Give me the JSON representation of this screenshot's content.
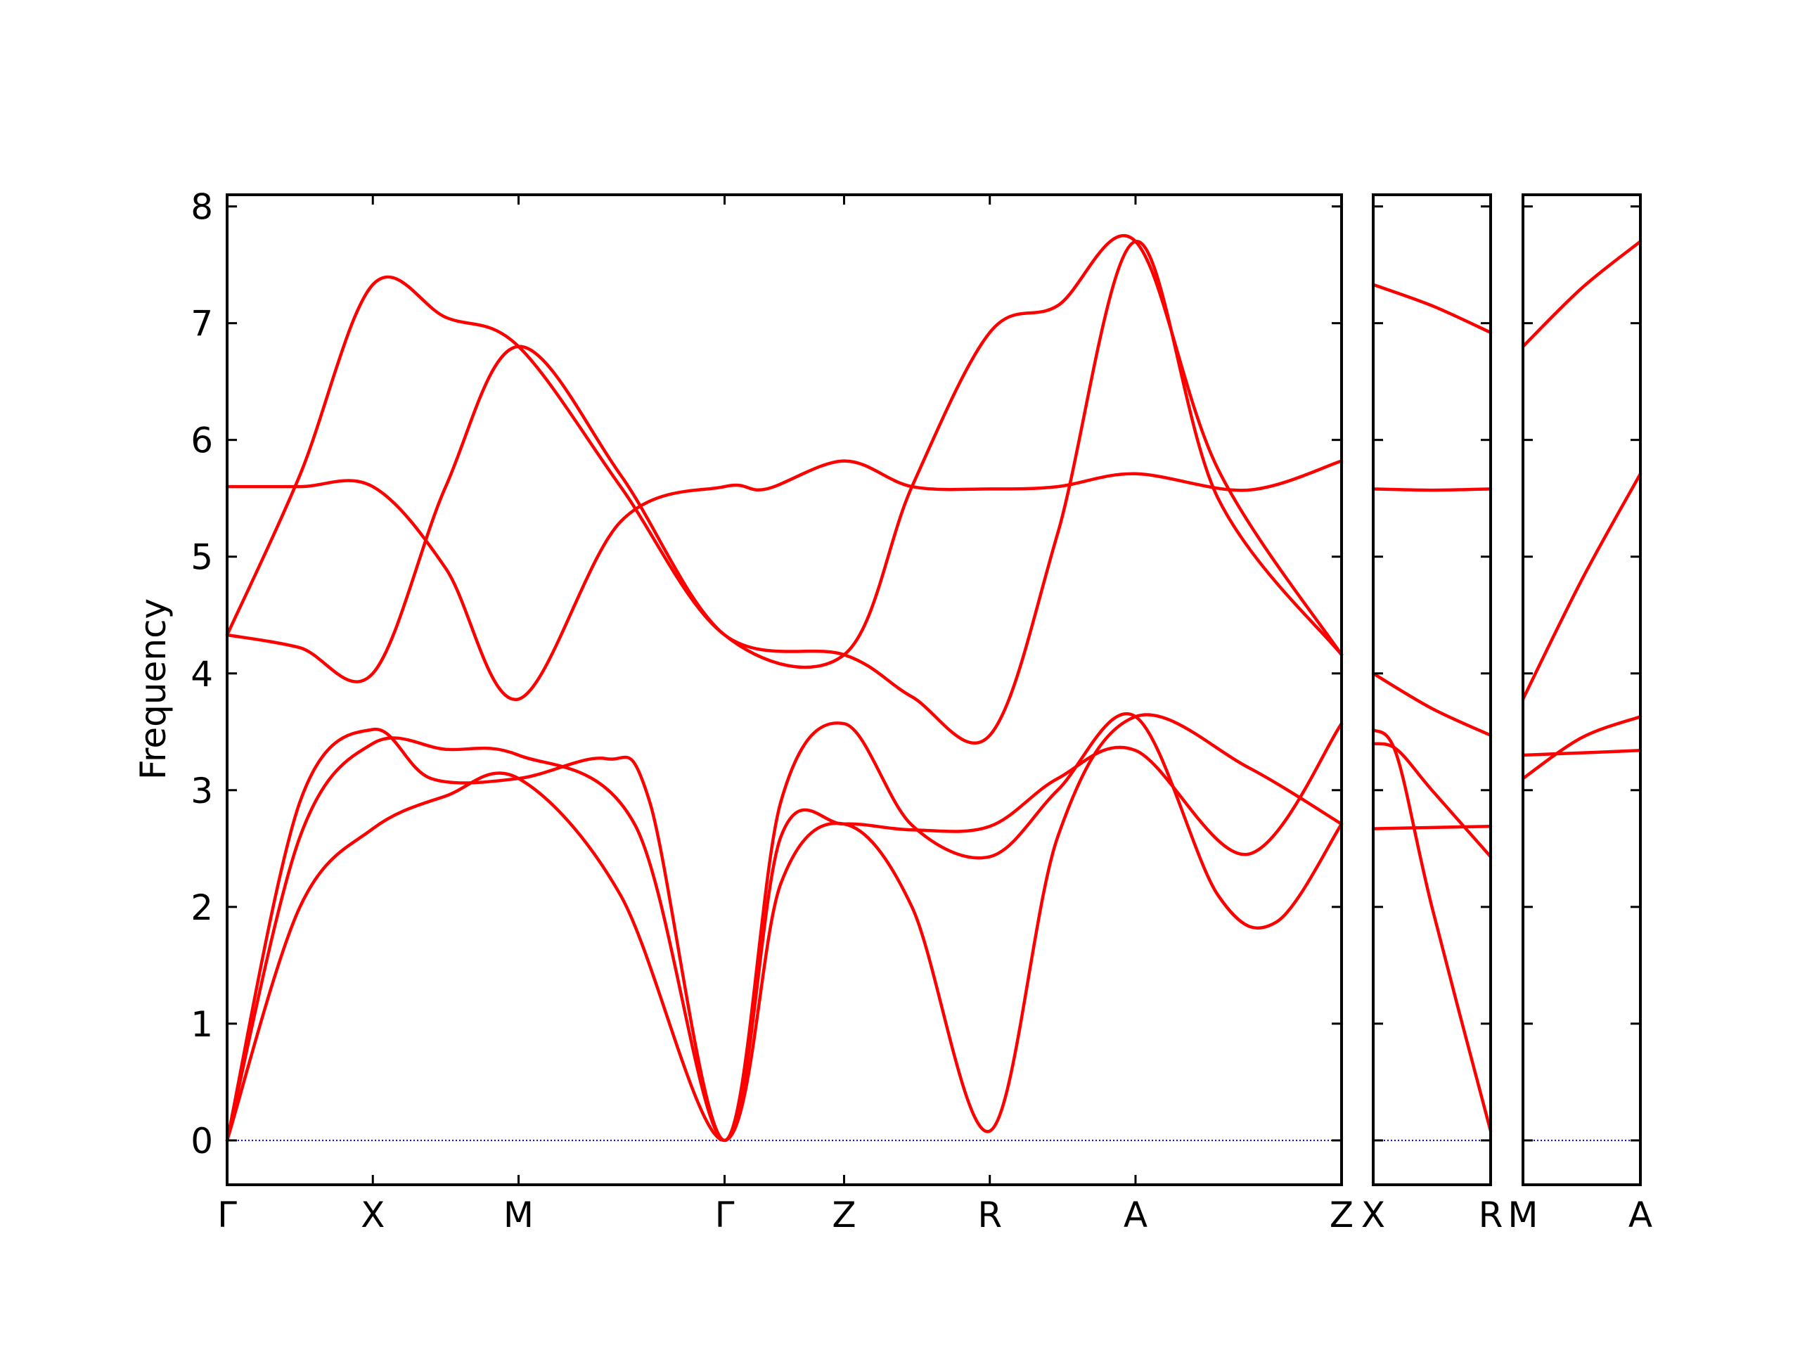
{
  "chart_data": {
    "type": "line",
    "title": "",
    "ylabel": "Frequency",
    "ylim": [
      -0.38,
      8.1
    ],
    "yticks": [
      "0",
      "1",
      "2",
      "3",
      "4",
      "5",
      "6",
      "7",
      "8"
    ],
    "grid": false,
    "legend": "none",
    "colors": {
      "bands": "#ff0000",
      "zero_line": "#0000ff",
      "axes": "#000000"
    },
    "panels": [
      {
        "ticks": [
          {
            "label": "Γ",
            "x": 0
          },
          {
            "label": "X",
            "x": 0.5
          },
          {
            "label": "M",
            "x": 1.0
          },
          {
            "label": "Γ",
            "x": 1.707
          },
          {
            "label": "Z",
            "x": 2.117
          },
          {
            "label": "R",
            "x": 2.617
          },
          {
            "label": "A",
            "x": 3.117
          },
          {
            "label": "Z",
            "x": 3.824
          }
        ],
        "series": [
          {
            "x": [
              0,
              0.25,
              0.5,
              0.75,
              1.0,
              1.35,
              1.707,
              1.9,
              2.117,
              2.35,
              2.617,
              2.85,
              3.117,
              3.5,
              3.824
            ],
            "y": [
              0.0,
              2.0,
              2.67,
              2.95,
              3.1,
              2.1,
              0.0,
              2.2,
              2.71,
              2.0,
              0.08,
              2.6,
              3.63,
              3.2,
              2.71
            ]
          },
          {
            "x": [
              0,
              0.25,
              0.5,
              0.75,
              1.0,
              1.4,
              1.707,
              1.9,
              2.117,
              2.35,
              2.617,
              2.85,
              3.117,
              3.5,
              3.824
            ],
            "y": [
              0.0,
              2.6,
              3.4,
              3.35,
              3.3,
              2.7,
              0.0,
              2.6,
              2.71,
              2.66,
              2.69,
              3.1,
              3.34,
              2.45,
              3.57
            ]
          },
          {
            "x": [
              0,
              0.25,
              0.5,
              0.7,
              1.0,
              1.3,
              1.45,
              1.707,
              1.9,
              2.117,
              2.35,
              2.617,
              2.85,
              3.117,
              3.4,
              3.6,
              3.824
            ],
            "y": [
              0.0,
              2.9,
              3.52,
              3.1,
              3.1,
              3.27,
              2.9,
              0.0,
              2.9,
              3.57,
              2.7,
              2.43,
              3.0,
              3.63,
              2.1,
              1.87,
              2.71
            ]
          },
          {
            "x": [
              0,
              0.25,
              0.5,
              0.75,
              1.0,
              1.35,
              1.707,
              2.117,
              2.35,
              2.617,
              2.85,
              3.117,
              3.4,
              3.824
            ],
            "y": [
              4.33,
              4.22,
              4.0,
              5.6,
              6.8,
              5.7,
              4.33,
              4.16,
              5.6,
              6.92,
              7.15,
              7.7,
              5.75,
              4.16
            ]
          },
          {
            "x": [
              0,
              0.25,
              0.5,
              0.75,
              1.0,
              1.35,
              1.707,
              2.117,
              2.35,
              2.617,
              2.85,
              3.117,
              3.4,
              3.824
            ],
            "y": [
              4.33,
              5.7,
              7.33,
              7.05,
              6.8,
              5.6,
              4.33,
              4.16,
              3.8,
              3.47,
              5.2,
              7.7,
              5.5,
              4.16
            ]
          },
          {
            "x": [
              0,
              0.25,
              0.5,
              0.75,
              1.0,
              1.35,
              1.707,
              1.85,
              2.117,
              2.35,
              2.617,
              2.85,
              3.117,
              3.5,
              3.824
            ],
            "y": [
              5.6,
              5.6,
              5.6,
              4.9,
              3.78,
              5.3,
              5.6,
              5.58,
              5.82,
              5.6,
              5.58,
              5.6,
              5.71,
              5.57,
              5.82
            ]
          }
        ],
        "zero_line": true
      },
      {
        "ticks": [
          {
            "label": "X",
            "x": 0
          },
          {
            "label": "R",
            "x": 0.5
          }
        ],
        "series": [
          {
            "x": [
              0,
              0.25,
              0.5
            ],
            "y": [
              7.33,
              7.15,
              6.92
            ]
          },
          {
            "x": [
              0,
              0.25,
              0.5
            ],
            "y": [
              5.58,
              5.57,
              5.58
            ]
          },
          {
            "x": [
              0,
              0.25,
              0.5
            ],
            "y": [
              4.0,
              3.7,
              3.47
            ]
          },
          {
            "x": [
              0,
              0.1,
              0.25,
              0.5
            ],
            "y": [
              3.52,
              3.3,
              2.0,
              0.08
            ]
          },
          {
            "x": [
              0,
              0.1,
              0.25,
              0.5
            ],
            "y": [
              3.4,
              3.35,
              3.0,
              2.43
            ]
          },
          {
            "x": [
              0,
              0.25,
              0.5
            ],
            "y": [
              2.67,
              2.68,
              2.69
            ]
          }
        ],
        "zero_line": true
      },
      {
        "ticks": [
          {
            "label": "M",
            "x": 0
          },
          {
            "label": "A",
            "x": 0.5
          }
        ],
        "series": [
          {
            "x": [
              0,
              0.25,
              0.5
            ],
            "y": [
              6.8,
              7.3,
              7.7
            ]
          },
          {
            "x": [
              0,
              0.25,
              0.5
            ],
            "y": [
              3.78,
              4.8,
              5.71
            ]
          },
          {
            "x": [
              0,
              0.25,
              0.5
            ],
            "y": [
              3.1,
              3.45,
              3.63
            ]
          },
          {
            "x": [
              0,
              0.25,
              0.5
            ],
            "y": [
              3.3,
              3.32,
              3.34
            ]
          }
        ],
        "zero_line": true
      }
    ]
  }
}
